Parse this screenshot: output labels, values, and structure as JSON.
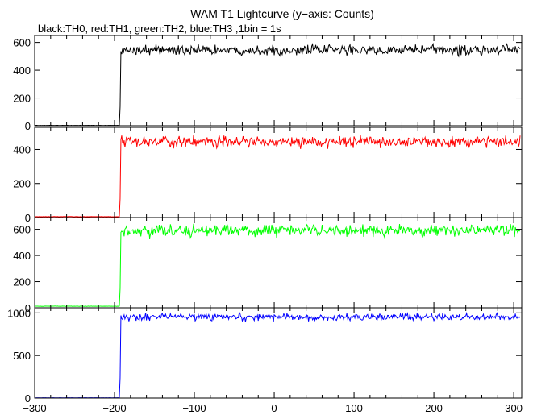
{
  "chart_data": {
    "type": "line",
    "title": "WAM T1 Lightcurve (y−axis: Counts)",
    "subtitle": "black:TH0, red:TH1, green:TH2, blue:TH3 ,1bin = 1s",
    "xlabel": "",
    "ylabel": "",
    "xlim": [
      -300,
      310
    ],
    "x_ticks": [
      -300,
      -200,
      -100,
      0,
      100,
      200,
      300
    ],
    "x_tick_labels": [
      "−300",
      "−200",
      "−100",
      "0",
      "100",
      "200",
      "300"
    ],
    "grid": false,
    "panels": [
      {
        "name": "TH0",
        "color": "#000000",
        "ylim": [
          0,
          650
        ],
        "y_ticks": [
          0,
          200,
          400,
          600
        ],
        "y_tick_labels": [
          "0",
          "200",
          "400",
          "600"
        ],
        "onset_x": -192,
        "pre_level": 2,
        "post_level": 545,
        "noise": 24
      },
      {
        "name": "TH1",
        "color": "#ff0000",
        "ylim": [
          0,
          530
        ],
        "y_ticks": [
          0,
          200,
          400
        ],
        "y_tick_labels": [
          "0",
          "200",
          "400"
        ],
        "onset_x": -192,
        "pre_level": 5,
        "post_level": 445,
        "noise": 22
      },
      {
        "name": "TH2",
        "color": "#00ff00",
        "ylim": [
          0,
          690
        ],
        "y_ticks": [
          0,
          200,
          400,
          600
        ],
        "y_tick_labels": [
          "0",
          "200",
          "400",
          "600"
        ],
        "onset_x": -192,
        "pre_level": 12,
        "post_level": 590,
        "noise": 28
      },
      {
        "name": "TH3",
        "color": "#0000ff",
        "ylim": [
          0,
          1060
        ],
        "y_ticks": [
          0,
          500,
          1000
        ],
        "y_tick_labels": [
          "0",
          "500",
          "1000"
        ],
        "onset_x": -192,
        "pre_level": 3,
        "post_level": 950,
        "noise": 28
      }
    ]
  }
}
